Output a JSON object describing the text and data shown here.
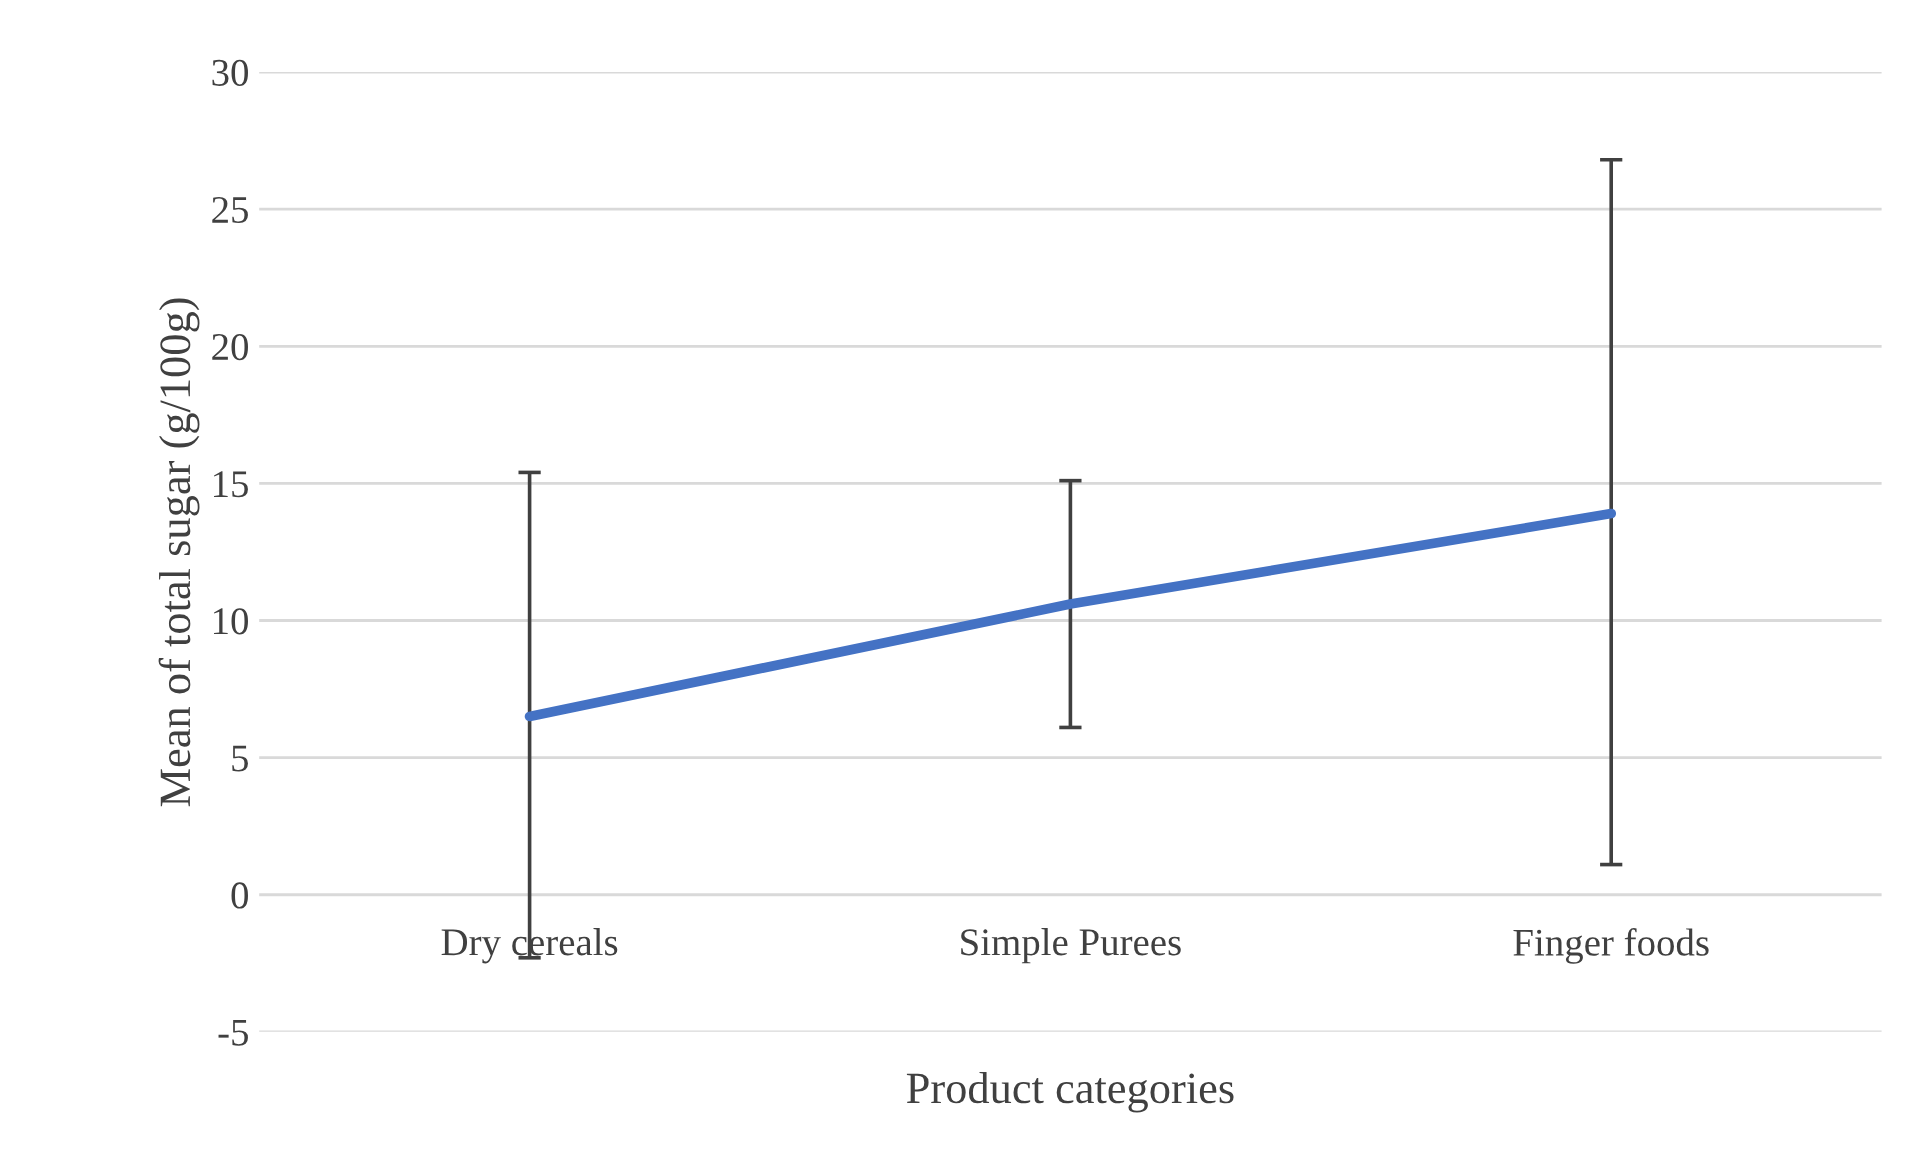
{
  "chart_data": {
    "type": "line",
    "xlabel": "Product categories",
    "ylabel": "Mean of total sugar (g/100g)",
    "categories": [
      "Dry cereals",
      "Simple Purees",
      "Finger foods"
    ],
    "series": [
      {
        "color": "#4472c4",
        "values": [
          6.5,
          10.6,
          13.9
        ],
        "errors": [
          [
            -2.3,
            15.4
          ],
          [
            6.1,
            15.1
          ],
          [
            1.1,
            26.8
          ]
        ]
      }
    ],
    "ylim": [
      -5,
      30
    ],
    "yticks": [
      -5,
      0,
      5,
      10,
      15,
      20,
      25,
      30
    ],
    "grid": "y",
    "legend": false,
    "marker": "none",
    "line_style": "solid"
  }
}
